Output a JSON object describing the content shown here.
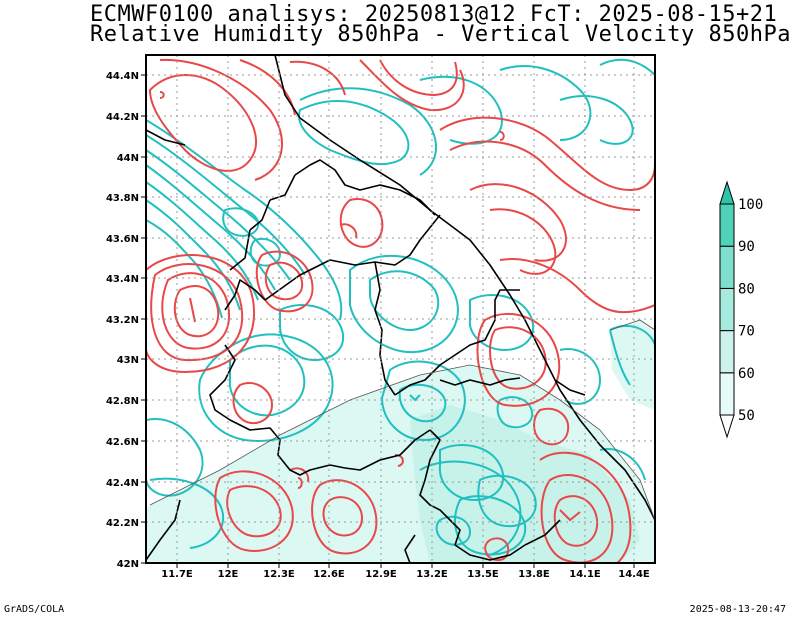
{
  "header": {
    "line1": "ECMWF0100 analisys: 20250813@12 FcT: 2025-08-15+21",
    "line2": "Relative Humidity 850hPa - Vertical Velocity 850hPa"
  },
  "footer": {
    "left": "GrADS/COLA",
    "right": "2025-08-13-20:47"
  },
  "map": {
    "lon_labels": [
      "11.7E",
      "12E",
      "12.3E",
      "12.6E",
      "12.9E",
      "13.2E",
      "13.5E",
      "13.8E",
      "14.1E",
      "14.4E"
    ],
    "lat_labels": [
      "44.4N",
      "44.2N",
      "44N",
      "43.8N",
      "43.6N",
      "43.4N",
      "43.2N",
      "43N",
      "42.8N",
      "42.6N",
      "42.4N",
      "42.2N",
      "42N"
    ],
    "lon_range": [
      11.5,
      14.5
    ],
    "lat_range": [
      42.0,
      44.5
    ],
    "grid": true,
    "contour_colors": {
      "humidity": "#20c0c0",
      "vertical_velocity": "#e84848",
      "shading": "#b8f0e8"
    }
  },
  "colorbar": {
    "labels": [
      "50",
      "60",
      "70",
      "80",
      "90",
      "100"
    ],
    "colors": [
      "#ffffff",
      "#e6faf6",
      "#cbf3ec",
      "#a6ebde",
      "#7ee0cc",
      "#4fd2b8",
      "#2fc4a8"
    ]
  }
}
